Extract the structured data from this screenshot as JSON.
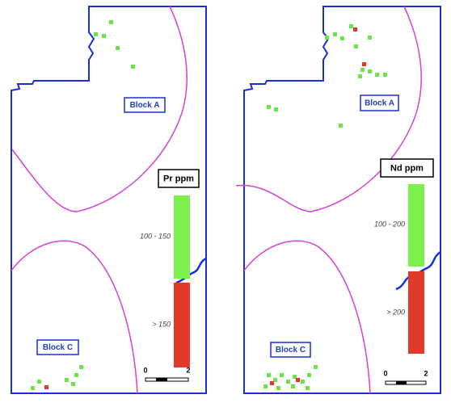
{
  "panels": [
    {
      "block_labels": [
        "Block A",
        "Block C"
      ],
      "legend": {
        "title": "Pr ppm",
        "classes": [
          "100 - 150",
          "> 150"
        ]
      },
      "scale": [
        "0",
        "2"
      ]
    },
    {
      "block_labels": [
        "Block A",
        "Block C"
      ],
      "legend": {
        "title": "Nd ppm",
        "classes": [
          "100 - 200",
          "> 200"
        ]
      },
      "scale": [
        "0",
        "2"
      ]
    }
  ]
}
